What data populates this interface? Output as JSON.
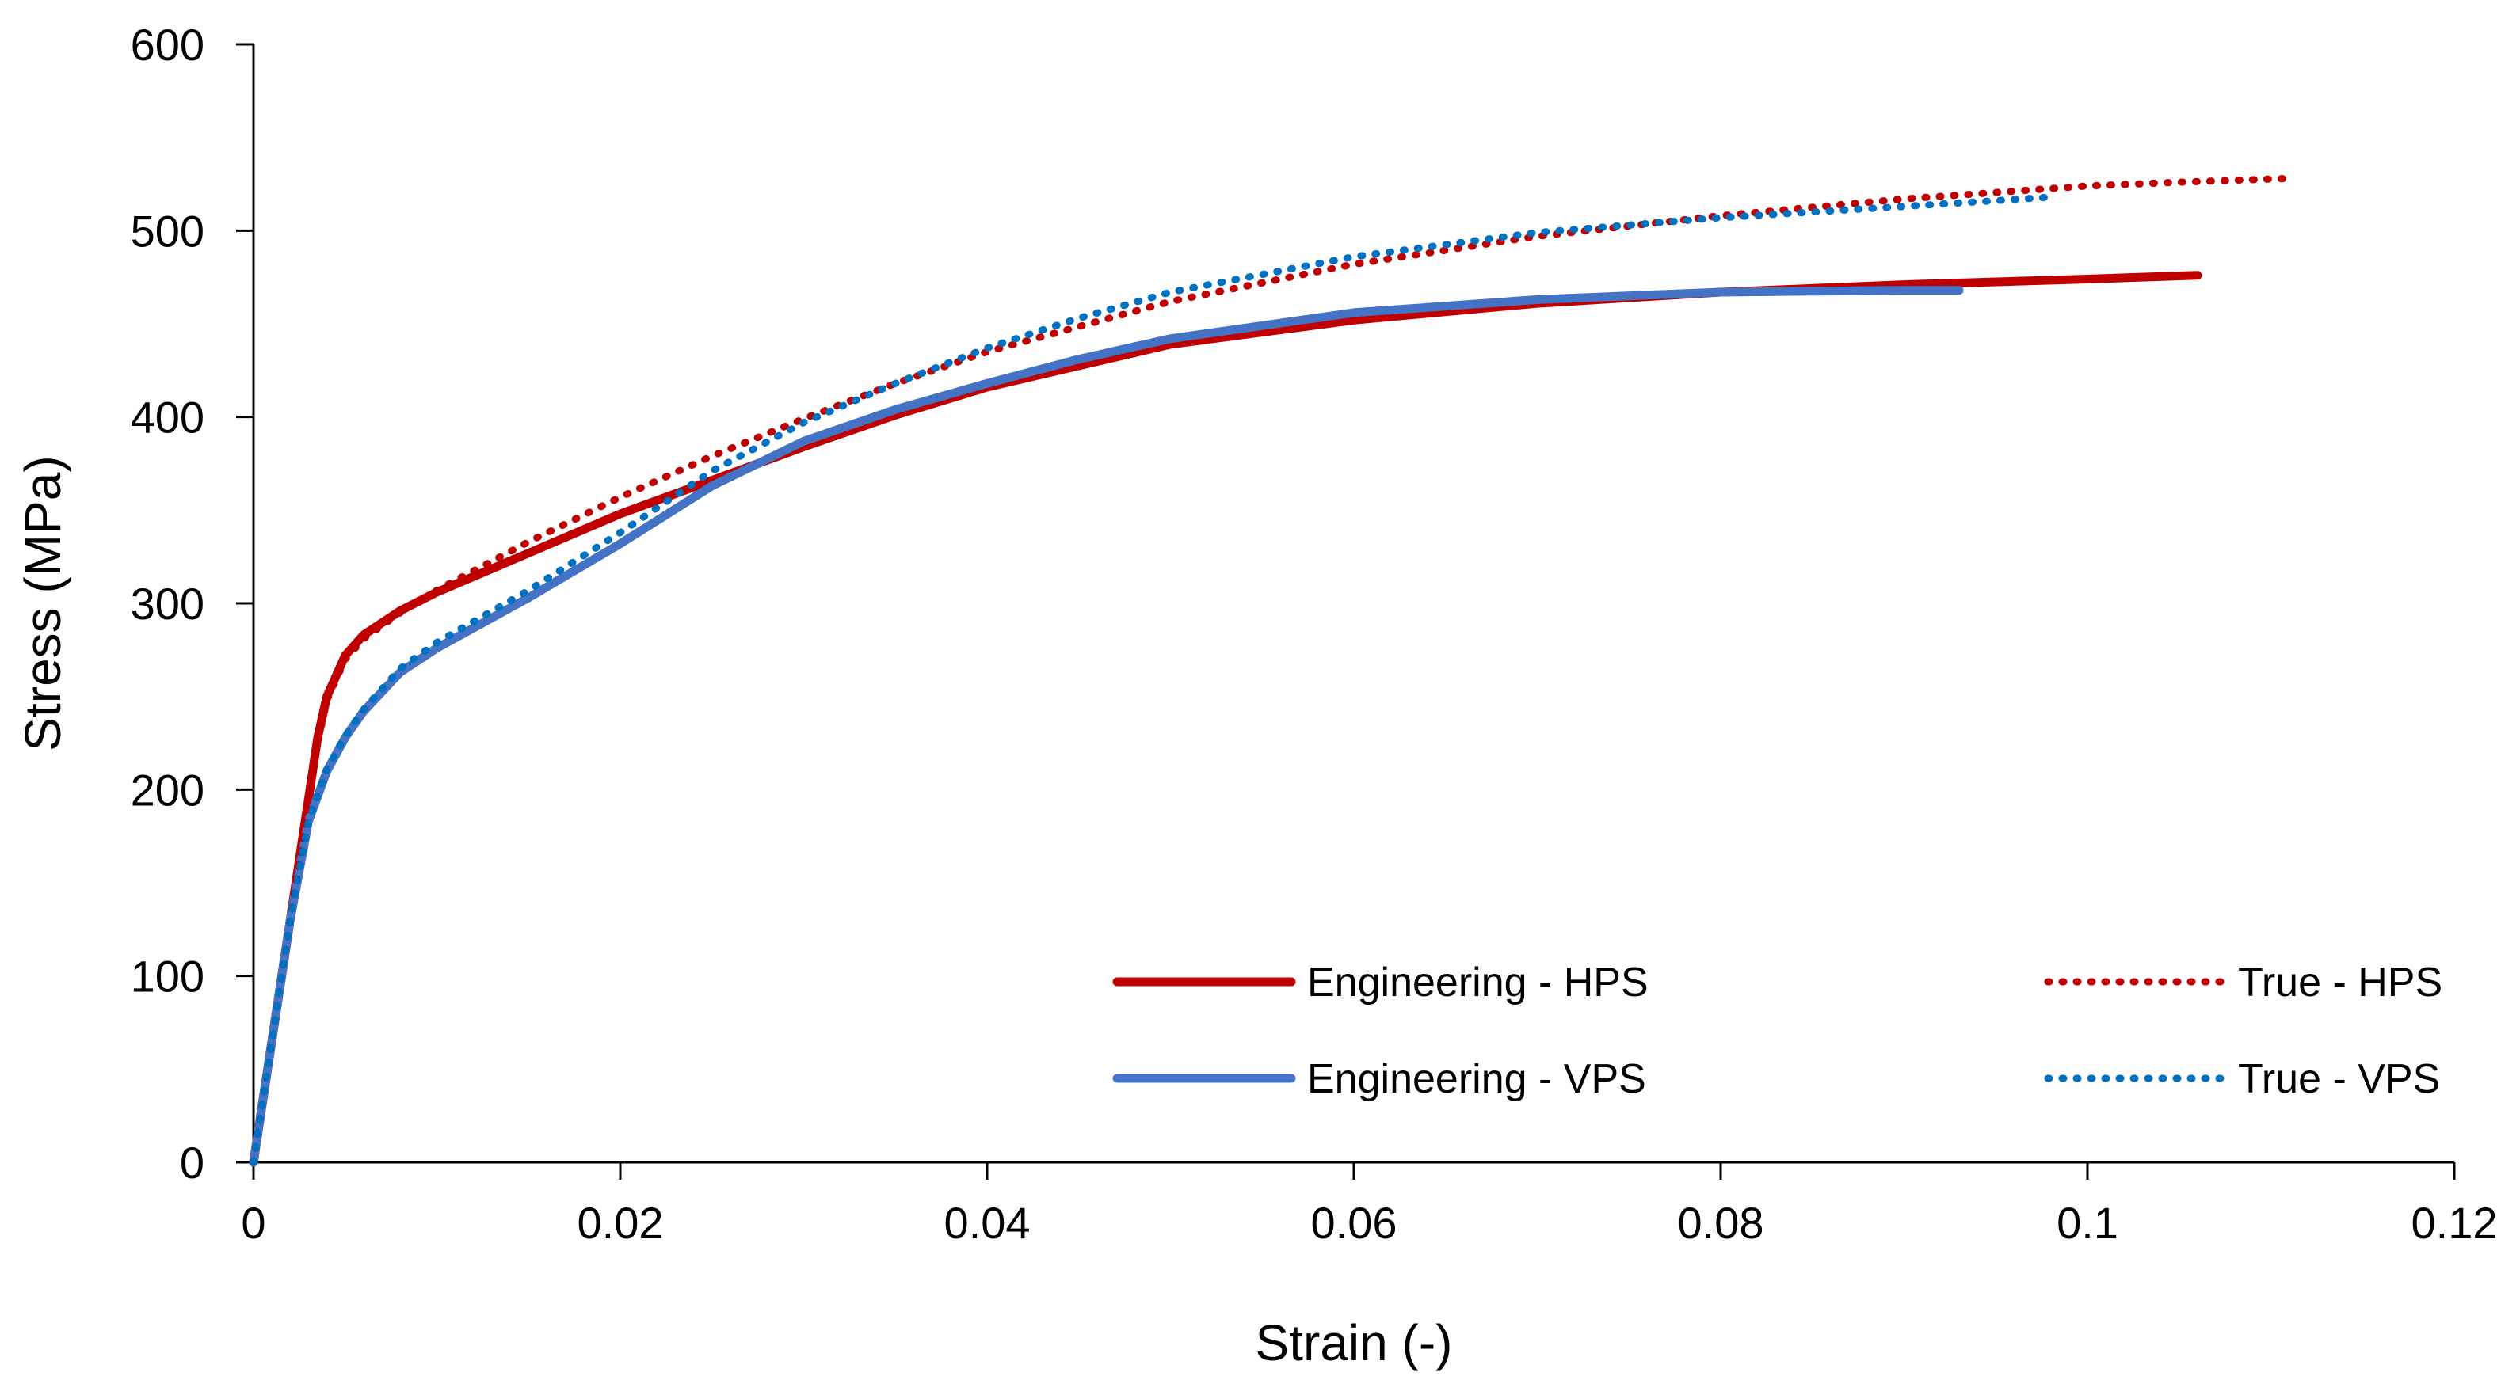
{
  "chart_data": {
    "type": "line",
    "title": "",
    "xlabel": "Strain (-)",
    "ylabel": "Stress (MPa)",
    "xlim": [
      0,
      0.12
    ],
    "ylim": [
      0,
      600
    ],
    "xticks": [
      0,
      0.02,
      0.04,
      0.06,
      0.08,
      0.1,
      0.12
    ],
    "xtick_labels": [
      "0",
      "0.02",
      "0.04",
      "0.06",
      "0.08",
      "0.1",
      "0.12"
    ],
    "yticks": [
      0,
      100,
      200,
      300,
      400,
      500,
      600
    ],
    "ytick_labels": [
      "0",
      "100",
      "200",
      "300",
      "400",
      "500",
      "600"
    ],
    "grid": false,
    "legend_position": "bottom-right",
    "series": [
      {
        "name": "Engineering - HPS",
        "color": "#C00000",
        "style": "solid",
        "x": [
          0,
          0.001,
          0.002,
          0.003,
          0.0035,
          0.004,
          0.005,
          0.006,
          0.008,
          0.01,
          0.015,
          0.02,
          0.025,
          0.03,
          0.035,
          0.04,
          0.05,
          0.06,
          0.07,
          0.08,
          0.09,
          0.1,
          0.106
        ],
        "y": [
          0,
          65,
          130,
          195,
          228,
          250,
          272,
          283,
          296,
          306,
          327,
          348,
          366,
          384,
          401,
          416,
          439,
          452,
          461,
          467,
          471,
          474,
          476
        ]
      },
      {
        "name": "Engineering - VPS",
        "color": "#4472C4",
        "style": "solid",
        "x": [
          0,
          0.001,
          0.002,
          0.003,
          0.004,
          0.005,
          0.006,
          0.008,
          0.01,
          0.015,
          0.02,
          0.025,
          0.03,
          0.035,
          0.04,
          0.045,
          0.05,
          0.06,
          0.07,
          0.08,
          0.09,
          0.093
        ],
        "y": [
          0,
          65,
          130,
          183,
          210,
          228,
          242,
          263,
          276,
          303,
          332,
          363,
          387,
          404,
          418,
          431,
          442,
          456,
          463,
          467,
          468,
          468
        ]
      },
      {
        "name": "True - HPS",
        "color": "#C00000",
        "style": "dotted",
        "x": [
          0,
          0.001,
          0.002,
          0.003,
          0.0035,
          0.004,
          0.005,
          0.006,
          0.008,
          0.01,
          0.015,
          0.02,
          0.025,
          0.03,
          0.035,
          0.04,
          0.05,
          0.06,
          0.07,
          0.08,
          0.09,
          0.1,
          0.105,
          0.111
        ],
        "y": [
          0,
          65,
          130,
          195,
          225,
          248,
          270,
          281,
          295,
          307,
          333,
          357,
          379,
          399,
          418,
          435,
          462,
          482,
          497,
          508,
          517,
          524,
          526,
          528
        ]
      },
      {
        "name": "True - VPS",
        "color": "#0070C0",
        "style": "dotted",
        "x": [
          0,
          0.001,
          0.002,
          0.003,
          0.004,
          0.005,
          0.006,
          0.008,
          0.01,
          0.015,
          0.02,
          0.025,
          0.03,
          0.035,
          0.04,
          0.045,
          0.05,
          0.06,
          0.07,
          0.08,
          0.09,
          0.098
        ],
        "y": [
          0,
          65,
          130,
          183,
          211,
          229,
          243,
          265,
          279,
          307,
          338,
          371,
          397,
          418,
          437,
          453,
          467,
          486,
          499,
          507,
          513,
          518
        ]
      }
    ],
    "legend": [
      {
        "label": "Engineering - HPS",
        "color": "#C00000",
        "style": "solid"
      },
      {
        "label": "True - HPS",
        "color": "#C00000",
        "style": "dotted"
      },
      {
        "label": "Engineering - VPS",
        "color": "#4472C4",
        "style": "solid"
      },
      {
        "label": "True - VPS",
        "color": "#0070C0",
        "style": "dotted"
      }
    ]
  }
}
